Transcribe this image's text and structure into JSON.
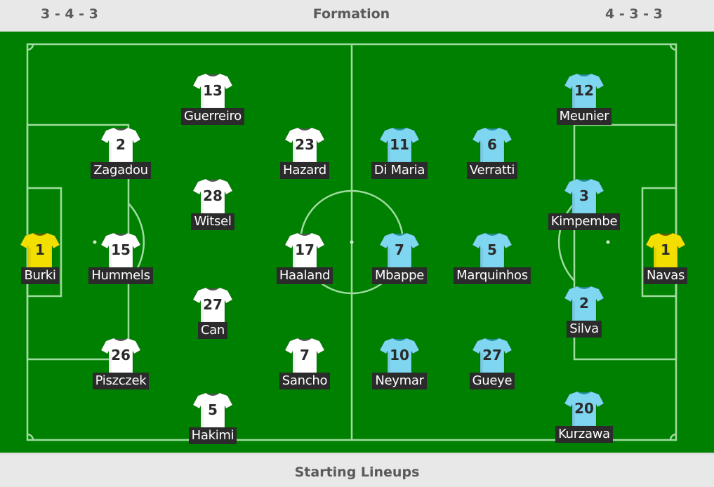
{
  "header": {
    "home_formation": "3 - 4 - 3",
    "title": "Formation",
    "away_formation": "4 - 3 - 3"
  },
  "footer": {
    "title": "Starting Lineups"
  },
  "colors": {
    "pitch": "#008000",
    "home_kit": "#ffffff",
    "away_kit": "#7fd6f0",
    "goalkeeper_kit": "#f2df00"
  },
  "home": [
    {
      "number": "1",
      "name": "Burki",
      "kit": "goalkeeper"
    },
    {
      "number": "2",
      "name": "Zagadou",
      "kit": "home"
    },
    {
      "number": "15",
      "name": "Hummels",
      "kit": "home"
    },
    {
      "number": "26",
      "name": "Piszczek",
      "kit": "home"
    },
    {
      "number": "13",
      "name": "Guerreiro",
      "kit": "home"
    },
    {
      "number": "28",
      "name": "Witsel",
      "kit": "home"
    },
    {
      "number": "27",
      "name": "Can",
      "kit": "home"
    },
    {
      "number": "5",
      "name": "Hakimi",
      "kit": "home"
    },
    {
      "number": "23",
      "name": "Hazard",
      "kit": "home"
    },
    {
      "number": "17",
      "name": "Haaland",
      "kit": "home"
    },
    {
      "number": "7",
      "name": "Sancho",
      "kit": "home"
    }
  ],
  "away": [
    {
      "number": "11",
      "name": "Di Maria",
      "kit": "away"
    },
    {
      "number": "7",
      "name": "Mbappe",
      "kit": "away"
    },
    {
      "number": "10",
      "name": "Neymar",
      "kit": "away"
    },
    {
      "number": "6",
      "name": "Verratti",
      "kit": "away"
    },
    {
      "number": "5",
      "name": "Marquinhos",
      "kit": "away"
    },
    {
      "number": "27",
      "name": "Gueye",
      "kit": "away"
    },
    {
      "number": "12",
      "name": "Meunier",
      "kit": "away"
    },
    {
      "number": "3",
      "name": "Kimpembe",
      "kit": "away"
    },
    {
      "number": "2",
      "name": "Silva",
      "kit": "away"
    },
    {
      "number": "20",
      "name": "Kurzawa",
      "kit": "away"
    },
    {
      "number": "1",
      "name": "Navas",
      "kit": "goalkeeper"
    }
  ]
}
